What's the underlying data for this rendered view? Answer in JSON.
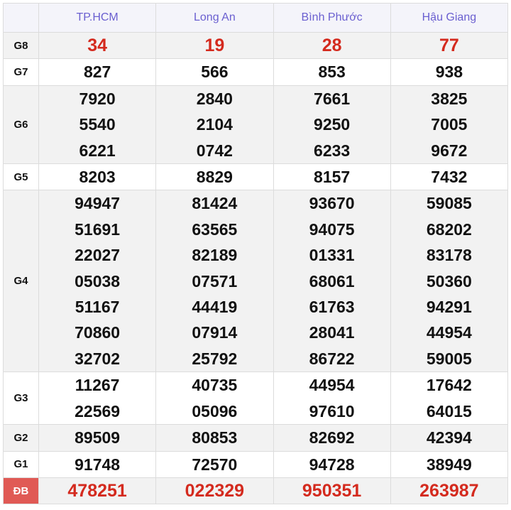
{
  "provinces": [
    "TP.HCM",
    "Long An",
    "Bình Phước",
    "Hậu Giang"
  ],
  "rows": [
    {
      "label": "G8",
      "red": true,
      "values": [
        [
          "34"
        ],
        [
          "19"
        ],
        [
          "28"
        ],
        [
          "77"
        ]
      ]
    },
    {
      "label": "G7",
      "values": [
        [
          "827"
        ],
        [
          "566"
        ],
        [
          "853"
        ],
        [
          "938"
        ]
      ]
    },
    {
      "label": "G6",
      "values": [
        [
          "7920",
          "5540",
          "6221"
        ],
        [
          "2840",
          "2104",
          "0742"
        ],
        [
          "7661",
          "9250",
          "6233"
        ],
        [
          "3825",
          "7005",
          "9672"
        ]
      ]
    },
    {
      "label": "G5",
      "values": [
        [
          "8203"
        ],
        [
          "8829"
        ],
        [
          "8157"
        ],
        [
          "7432"
        ]
      ]
    },
    {
      "label": "G4",
      "values": [
        [
          "94947",
          "51691",
          "22027",
          "05038",
          "51167",
          "70860",
          "32702"
        ],
        [
          "81424",
          "63565",
          "82189",
          "07571",
          "44419",
          "07914",
          "25792"
        ],
        [
          "93670",
          "94075",
          "01331",
          "68061",
          "61763",
          "28041",
          "86722"
        ],
        [
          "59085",
          "68202",
          "83178",
          "50360",
          "94291",
          "44954",
          "59005"
        ]
      ]
    },
    {
      "label": "G3",
      "values": [
        [
          "11267",
          "22569"
        ],
        [
          "40735",
          "05096"
        ],
        [
          "44954",
          "97610"
        ],
        [
          "17642",
          "64015"
        ]
      ]
    },
    {
      "label": "G2",
      "values": [
        [
          "89509"
        ],
        [
          "80853"
        ],
        [
          "82692"
        ],
        [
          "42394"
        ]
      ]
    },
    {
      "label": "G1",
      "values": [
        [
          "91748"
        ],
        [
          "72570"
        ],
        [
          "94728"
        ],
        [
          "38949"
        ]
      ]
    },
    {
      "label": "ĐB",
      "red": true,
      "special": true,
      "values": [
        [
          "478251"
        ],
        [
          "022329"
        ],
        [
          "950351"
        ],
        [
          "263987"
        ]
      ]
    }
  ],
  "colors": {
    "header_text": "#6a5fd0",
    "red": "#d42a1e",
    "special_label_bg": "#e05a55"
  }
}
